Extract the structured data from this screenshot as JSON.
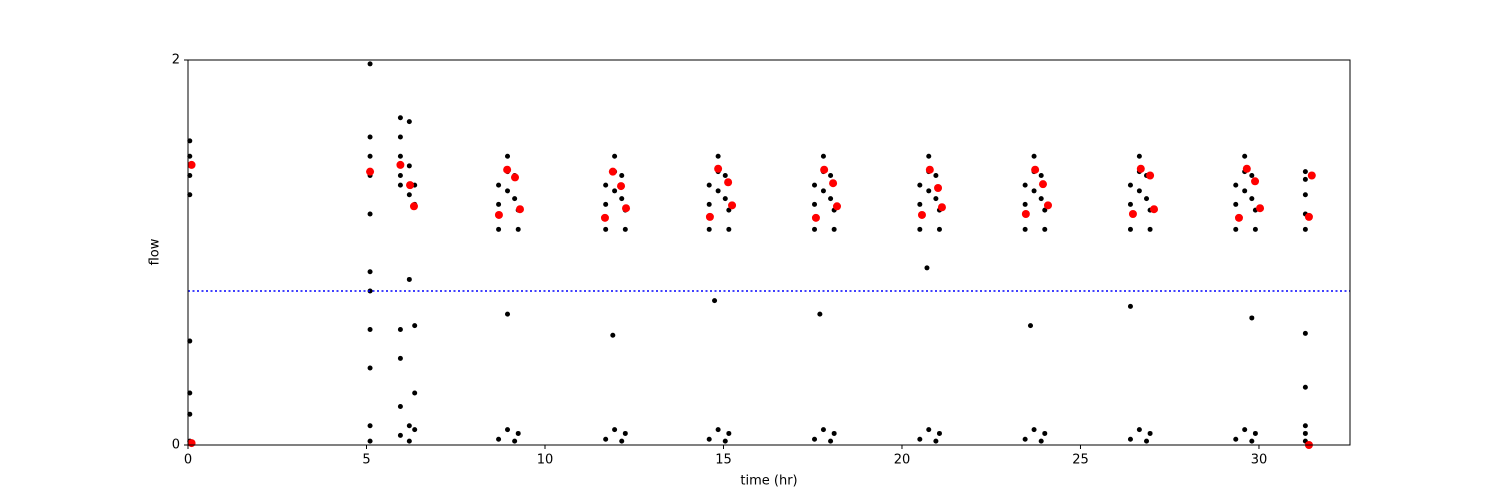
{
  "chart_data": {
    "type": "scatter",
    "xlabel": "time (hr)",
    "ylabel": "flow",
    "xlim": [
      0,
      32.55
    ],
    "ylim": [
      0,
      2
    ],
    "xticks": [
      0,
      5,
      10,
      15,
      20,
      25,
      30
    ],
    "yticks": [
      0,
      2
    ],
    "hline": {
      "value": 0.8,
      "color": "#0000ff"
    },
    "series": [
      {
        "color": "#000000",
        "x": [
          0.05,
          0.05,
          0.05,
          0.05,
          0.05,
          0.05,
          0.05,
          0.05,
          5.1,
          5.1,
          5.1,
          5.1,
          5.1,
          5.1,
          5.1,
          5.1,
          5.1,
          5.1,
          5.1,
          5.95,
          5.95,
          5.95,
          5.95,
          5.95,
          5.95,
          5.95,
          5.95,
          5.95,
          6.2,
          6.2,
          6.2,
          6.2,
          6.2,
          6.2,
          6.35,
          6.35,
          6.35,
          6.35,
          6.35,
          8.7,
          8.7,
          8.7,
          8.95,
          8.95,
          8.95,
          9.15,
          9.15,
          9.25,
          9.25,
          8.7,
          8.95,
          9.15,
          9.25,
          8.95,
          11.7,
          11.7,
          11.7,
          11.95,
          11.95,
          11.95,
          12.15,
          12.15,
          12.25,
          12.25,
          11.7,
          11.95,
          12.15,
          12.25,
          11.9,
          14.6,
          14.6,
          14.6,
          14.85,
          14.85,
          14.85,
          15.05,
          15.05,
          15.15,
          15.15,
          14.6,
          14.85,
          15.05,
          15.15,
          14.75,
          17.55,
          17.55,
          17.55,
          17.8,
          17.8,
          17.8,
          18,
          18,
          18.1,
          18.1,
          17.55,
          17.8,
          18,
          18.1,
          17.7,
          20.5,
          20.5,
          20.5,
          20.75,
          20.75,
          20.75,
          20.95,
          20.95,
          21.05,
          21.05,
          20.5,
          20.75,
          20.95,
          21.05,
          20.7,
          23.45,
          23.45,
          23.45,
          23.7,
          23.7,
          23.7,
          23.9,
          23.9,
          24,
          24,
          23.45,
          23.7,
          23.9,
          24,
          23.6,
          26.4,
          26.4,
          26.4,
          26.65,
          26.65,
          26.65,
          26.85,
          26.85,
          26.95,
          26.95,
          26.4,
          26.65,
          26.85,
          26.95,
          26.4,
          29.35,
          29.35,
          29.35,
          29.6,
          29.6,
          29.6,
          29.8,
          29.8,
          29.9,
          29.9,
          29.35,
          29.6,
          29.8,
          29.9,
          29.8,
          31.3,
          31.3,
          31.3,
          31.3,
          31.3,
          31.3,
          31.3,
          31.3,
          31.3,
          31.3
        ],
        "values": [
          1.3,
          1.4,
          1.5,
          1.58,
          0.02,
          0.27,
          0.54,
          0.16,
          1.98,
          1.6,
          1.5,
          1.4,
          1.2,
          0.9,
          0.8,
          0.6,
          0.4,
          0.1,
          0.02,
          1.7,
          1.6,
          1.5,
          1.4,
          1.35,
          0.6,
          0.45,
          0.2,
          0.05,
          1.68,
          1.45,
          1.3,
          0.86,
          0.1,
          0.02,
          1.35,
          1.25,
          0.62,
          0.27,
          0.08,
          1.12,
          1.25,
          1.35,
          1.32,
          1.42,
          1.5,
          1.28,
          1.4,
          1.12,
          1.22,
          0.03,
          0.08,
          0.02,
          0.06,
          0.68,
          1.12,
          1.25,
          1.35,
          1.32,
          1.42,
          1.5,
          1.28,
          1.4,
          1.12,
          1.22,
          0.03,
          0.08,
          0.02,
          0.06,
          0.57,
          1.12,
          1.25,
          1.35,
          1.32,
          1.42,
          1.5,
          1.28,
          1.4,
          1.12,
          1.22,
          0.03,
          0.08,
          0.02,
          0.06,
          0.75,
          1.12,
          1.25,
          1.35,
          1.32,
          1.42,
          1.5,
          1.28,
          1.4,
          1.12,
          1.22,
          0.03,
          0.08,
          0.02,
          0.06,
          0.68,
          1.12,
          1.25,
          1.35,
          1.32,
          1.42,
          1.5,
          1.28,
          1.4,
          1.12,
          1.22,
          0.03,
          0.08,
          0.02,
          0.06,
          0.92,
          1.12,
          1.25,
          1.35,
          1.32,
          1.42,
          1.5,
          1.28,
          1.4,
          1.12,
          1.22,
          0.03,
          0.08,
          0.02,
          0.06,
          0.62,
          1.12,
          1.25,
          1.35,
          1.32,
          1.42,
          1.5,
          1.28,
          1.4,
          1.12,
          1.22,
          0.03,
          0.08,
          0.02,
          0.06,
          0.72,
          1.12,
          1.25,
          1.35,
          1.32,
          1.42,
          1.5,
          1.28,
          1.4,
          1.12,
          1.22,
          0.03,
          0.08,
          0.02,
          0.06,
          0.66,
          1.12,
          1.2,
          1.3,
          1.38,
          1.42,
          0.02,
          0.06,
          0.1,
          0.3,
          0.58
        ]
      },
      {
        "color": "#ff0000",
        "x": [
          0.1,
          0.1,
          5.1,
          5.95,
          6.22,
          6.33,
          8.71,
          8.94,
          9.16,
          9.3,
          11.68,
          11.9,
          12.13,
          12.27,
          14.62,
          14.85,
          15.13,
          15.24,
          17.59,
          17.82,
          18.07,
          18.18,
          20.56,
          20.78,
          21.01,
          21.12,
          23.47,
          23.73,
          23.95,
          24.09,
          26.47,
          26.69,
          26.95,
          27.06,
          29.44,
          29.66,
          29.89,
          30.03,
          31.4,
          31.48,
          31.4
        ],
        "values": [
          1.455,
          0.01,
          1.42,
          1.455,
          1.35,
          1.24,
          1.195,
          1.43,
          1.39,
          1.225,
          1.18,
          1.42,
          1.345,
          1.23,
          1.185,
          1.435,
          1.365,
          1.245,
          1.18,
          1.43,
          1.36,
          1.24,
          1.195,
          1.43,
          1.335,
          1.235,
          1.2,
          1.43,
          1.355,
          1.245,
          1.2,
          1.435,
          1.4,
          1.225,
          1.18,
          1.435,
          1.37,
          1.23,
          1.185,
          1.4,
          0.0
        ]
      }
    ]
  }
}
